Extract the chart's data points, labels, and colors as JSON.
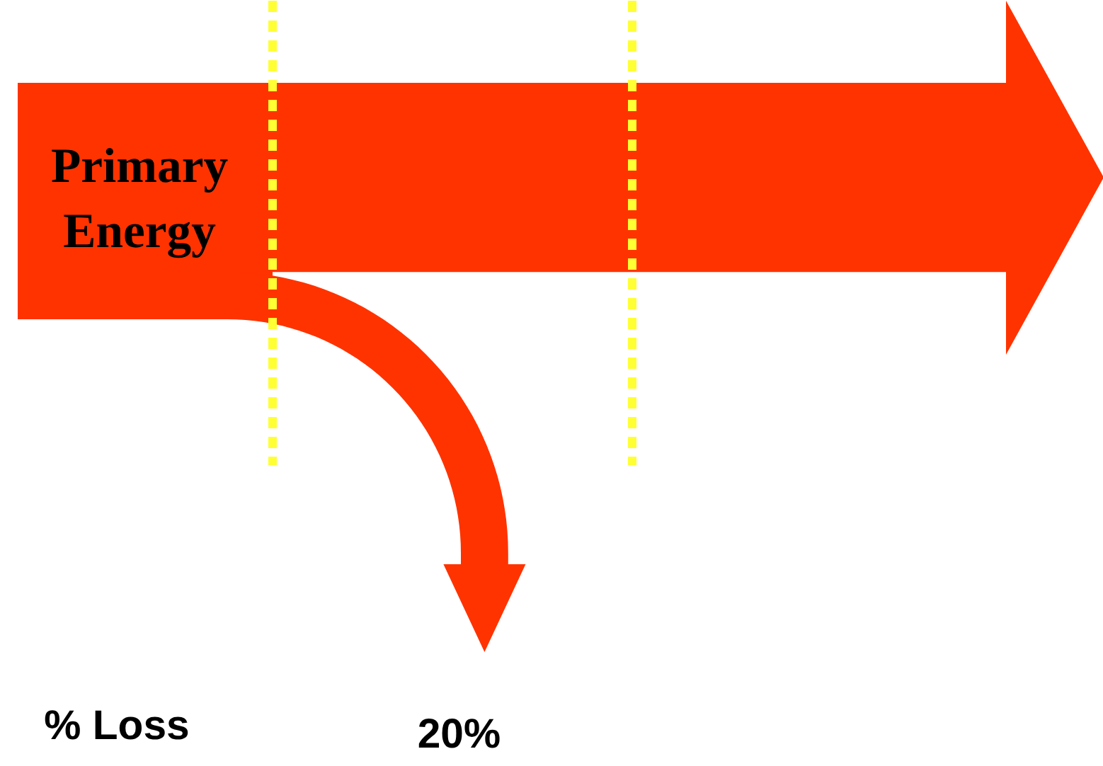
{
  "chart_data": {
    "type": "other",
    "categories": [
      null
    ],
    "values": [
      20
    ],
    "value_labels": [
      "20%"
    ],
    "color": "#ff3300",
    "annotations": [
      "Primary Energy",
      "% Loss"
    ]
  }
}
